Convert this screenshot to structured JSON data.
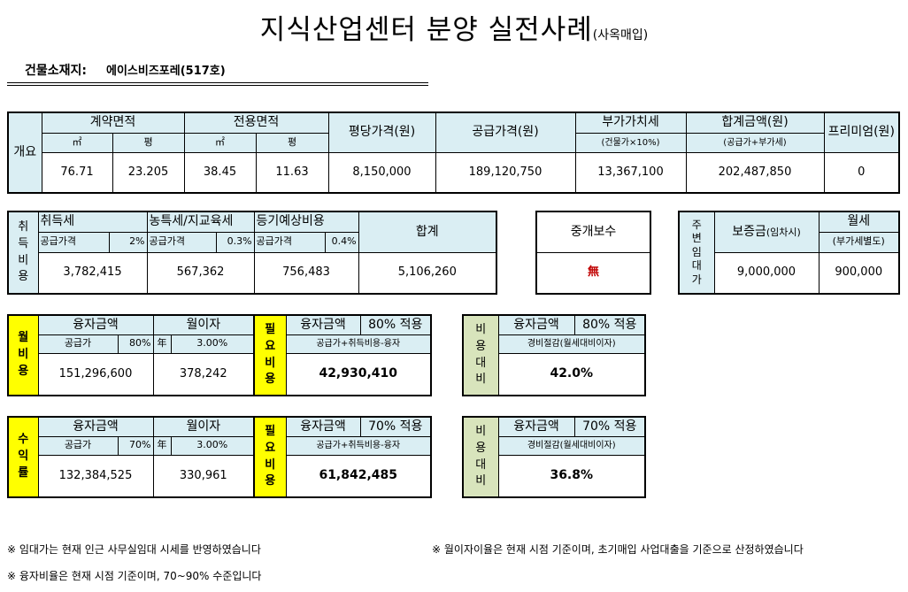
{
  "title": {
    "main": "지식산업센터 분양 실전사례",
    "sub": "(사옥매입)"
  },
  "location": {
    "label": "건물소재지:",
    "value": "에이스비즈포레(517호)"
  },
  "overview": {
    "side_label": "개요",
    "contract_area": "계약면적",
    "exclusive_area": "전용면적",
    "unit_m2": "㎡",
    "unit_pyeong": "평",
    "price_per_pyeong": "평당가격(원)",
    "supply_price": "공급가격(원)",
    "vat": "부가가치세",
    "vat_note": "(건물가×10%)",
    "total": "합계금액(원)",
    "total_note": "(공급가+부가세)",
    "premium": "프리미엄(원)",
    "values": {
      "contract_m2": "76.71",
      "contract_py": "23.205",
      "exclusive_m2": "38.45",
      "exclusive_py": "11.63",
      "price_per_pyeong": "8,150,000",
      "supply_price": "189,120,750",
      "vat": "13,367,100",
      "total": "202,487,850",
      "premium": "0"
    }
  },
  "acquisition": {
    "side_label": [
      "취",
      "득",
      "비",
      "용"
    ],
    "acq_tax": "취득세",
    "rural_tax": "농특세/지교육세",
    "registration": "등기예상비용",
    "total": "합계",
    "basis": "공급가격",
    "acq_rate": "2%",
    "rural_rate": "0.3%",
    "reg_rate": "0.4%",
    "acq_value": "3,782,415",
    "rural_value": "567,362",
    "reg_value": "756,483",
    "total_value": "5,106,260"
  },
  "brokerage": {
    "label": "중개보수",
    "value": "無"
  },
  "nearby_rent": {
    "side_label": [
      "주",
      "변",
      "임",
      "대",
      "가"
    ],
    "deposit_label": "보증금",
    "deposit_note": "(임차시)",
    "monthly_label": "월세",
    "monthly_note": "(부가세별도)",
    "deposit_value": "9,000,000",
    "monthly_value": "900,000"
  },
  "monthly_cost": {
    "side_label": [
      "월",
      "비",
      "용"
    ],
    "loan_label": "융자금액",
    "interest_label": "월이자",
    "basis": "공급가",
    "loan_rate": "80%",
    "year": "年",
    "interest_rate": "3.00%",
    "loan_value": "151,296,600",
    "interest_value": "378,242"
  },
  "required_1": {
    "side_label": [
      "필",
      "요",
      "비",
      "용"
    ],
    "loan_label": "융자금액",
    "applied": "80% 적용",
    "formula": "공급가+취득비용-융자",
    "value": "42,930,410"
  },
  "cost_ratio_1": {
    "side_label": [
      "비",
      "용",
      "대",
      "비"
    ],
    "loan_label": "융자금액",
    "applied": "80% 적용",
    "formula": "경비절감(월세대비이자)",
    "value": "42.0%"
  },
  "yield": {
    "side_label": [
      "수",
      "익",
      "률"
    ],
    "loan_label": "융자금액",
    "interest_label": "월이자",
    "basis": "공급가",
    "loan_rate": "70%",
    "year": "年",
    "interest_rate": "3.00%",
    "loan_value": "132,384,525",
    "interest_value": "330,961"
  },
  "required_2": {
    "side_label": [
      "필",
      "요",
      "비",
      "용"
    ],
    "loan_label": "융자금액",
    "applied": "70% 적용",
    "formula": "공급가+취득비용-융자",
    "value": "61,842,485"
  },
  "cost_ratio_2": {
    "side_label": [
      "비",
      "용",
      "대",
      "비"
    ],
    "loan_label": "융자금액",
    "applied": "70% 적용",
    "formula": "경비절감(월세대비이자)",
    "value": "36.8%"
  },
  "notes": {
    "rent_note": "※ 임대가는 현재 인근 사무실임대 시세를 반영하였습니다",
    "interest_note": "※ 월이자이율은 현재 시점 기준이며, 초기매입 사업대출을 기준으로 산정하였습니다",
    "loan_note": "※ 융자비율은 현재 시점 기준이며, 70~90% 수준입니다"
  },
  "colors": {
    "header_blue": "#daeef3",
    "highlight_yellow": "#ffff00",
    "ratio_green": "#d8e4bc",
    "accent_red": "#c00000"
  }
}
